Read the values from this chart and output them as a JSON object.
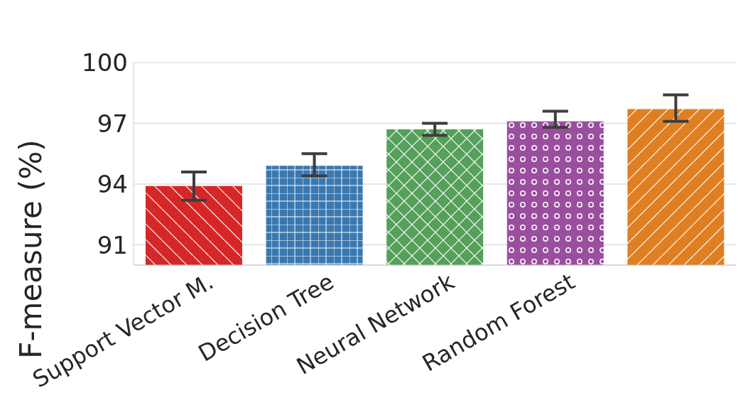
{
  "chart_data": {
    "type": "bar",
    "ylabel": "F-measure (%)",
    "categories": [
      "Support Vector M.",
      "Decision Tree",
      "Neural Network",
      "Random Forest",
      null
    ],
    "values": [
      93.9,
      94.9,
      96.7,
      97.1,
      97.7
    ],
    "colors": [
      "#d62728",
      "#3a78b0",
      "#55a05a",
      "#9a4f9e",
      "#e07f22"
    ],
    "errors": [
      [
        93.2,
        94.6
      ],
      [
        94.4,
        95.5
      ],
      [
        96.4,
        97.0
      ],
      [
        96.8,
        97.6
      ],
      [
        97.1,
        98.4
      ]
    ],
    "ylim": [
      90,
      100
    ],
    "yticks": [
      91,
      94,
      97,
      100
    ],
    "grid": "y",
    "legend": false
  }
}
